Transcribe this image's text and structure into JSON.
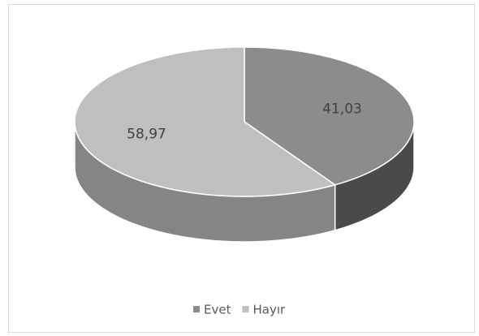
{
  "chart_data": {
    "type": "pie3d",
    "categories": [
      "Evet",
      "Hayır"
    ],
    "values": [
      41.03,
      58.97
    ],
    "value_labels": [
      "41,03",
      "58,97"
    ],
    "colors": [
      "#8c8c8c",
      "#bfbfbf"
    ],
    "legend": "bottom"
  }
}
